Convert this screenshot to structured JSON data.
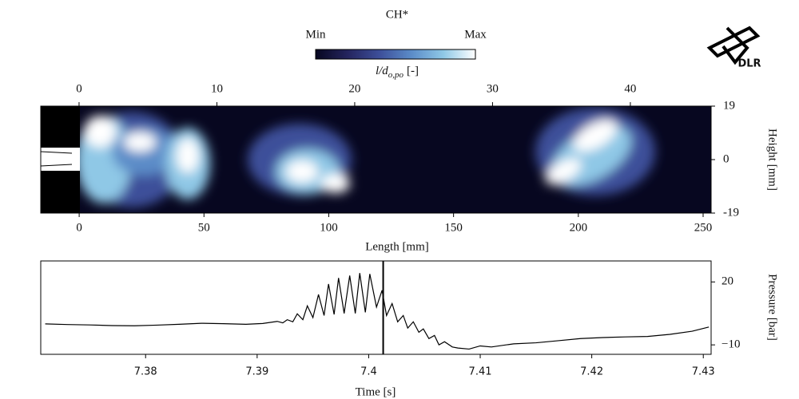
{
  "logo": {
    "text": "DLR"
  },
  "chart_data": [
    {
      "type": "image",
      "colorbar": {
        "title": "CH*",
        "min_label": "Min",
        "max_label": "Max",
        "label_main": "l/d",
        "label_sub": "o,po",
        "label_unit": "[-]",
        "colormap": [
          "#070720",
          "#24245e",
          "#3d4f9a",
          "#5b8cc8",
          "#8fc8e6",
          "#ffffff"
        ]
      },
      "xlabel": "Length [mm]",
      "xlim": [
        -15.4,
        253.2
      ],
      "xticks": [
        0,
        50,
        100,
        150,
        200,
        250
      ],
      "x2lim": [
        -2.78,
        45.86
      ],
      "x2ticks": [
        0,
        10,
        20,
        30,
        40
      ],
      "ylabel": "Height [mm]",
      "ylim": [
        -19,
        19
      ],
      "yticks": [
        19,
        0,
        -19
      ]
    },
    {
      "type": "line",
      "xlabel": "Time [s]",
      "ylabel": "Pressure [bar]",
      "xlim": [
        7.3706,
        7.4307
      ],
      "xticks": [
        7.38,
        7.39,
        7.4,
        7.41,
        7.42,
        7.43
      ],
      "ylim": [
        -14.5,
        30
      ],
      "yticks": [
        20,
        {
          "value": -10,
          "label": "−10"
        }
      ],
      "marker_x": 7.4013,
      "x": [
        7.371,
        7.373,
        7.375,
        7.377,
        7.379,
        7.381,
        7.383,
        7.385,
        7.387,
        7.389,
        7.3905,
        7.3918,
        7.3923,
        7.3927,
        7.3932,
        7.3936,
        7.3941,
        7.3945,
        7.395,
        7.3955,
        7.396,
        7.3964,
        7.3969,
        7.3973,
        7.3978,
        7.3983,
        7.3988,
        7.3992,
        7.3997,
        7.4001,
        7.4007,
        7.4012,
        7.4016,
        7.4021,
        7.4026,
        7.4031,
        7.4035,
        7.404,
        7.4045,
        7.4049,
        7.4054,
        7.4059,
        7.4063,
        7.4068,
        7.4075,
        7.408,
        7.409,
        7.41,
        7.411,
        7.413,
        7.415,
        7.417,
        7.419,
        7.421,
        7.423,
        7.425,
        7.427,
        7.429,
        7.4305
      ],
      "series": [
        {
          "color": "#000000",
          "values": [
            0,
            -0.3,
            -0.5,
            -0.8,
            -0.9,
            -0.6,
            -0.2,
            0.3,
            0.1,
            -0.2,
            0.2,
            1.2,
            0.5,
            2,
            1,
            4.8,
            2,
            8.6,
            3,
            14,
            4,
            19,
            4.5,
            21.9,
            5,
            23,
            5,
            24.2,
            5.5,
            23.8,
            8,
            16,
            4,
            9.7,
            1,
            4,
            -2,
            1,
            -4,
            -2.4,
            -7,
            -5.5,
            -10,
            -8.5,
            -11,
            -11.5,
            -12,
            -10.5,
            -11,
            -9.5,
            -9,
            -8,
            -7,
            -6.5,
            -6.2,
            -6,
            -5,
            -3.5,
            -1.5
          ]
        }
      ]
    }
  ]
}
